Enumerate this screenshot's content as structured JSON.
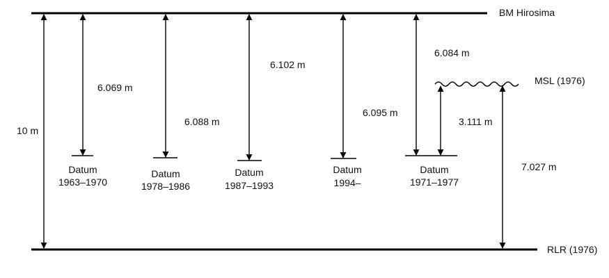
{
  "references": {
    "bm": "BM Hirosima",
    "msl": "MSL (1976)",
    "rlr": "RLR (1976)"
  },
  "measurements": {
    "total": "10 m",
    "datum_1963": "6.069 m",
    "datum_1978": "6.088 m",
    "datum_1987": "6.102 m",
    "datum_1994": "6.095 m",
    "datum_1971": "6.084 m",
    "msl_to_datum_1971": "3.111 m",
    "msl_to_rlr": "7.027 m"
  },
  "datums": {
    "d1": {
      "label": "Datum",
      "period": "1963–1970"
    },
    "d2": {
      "label": "Datum",
      "period": "1978–1986"
    },
    "d3": {
      "label": "Datum",
      "period": "1987–1993"
    },
    "d4": {
      "label": "Datum",
      "period": "1994–"
    },
    "d5": {
      "label": "Datum",
      "period": "1971–1977"
    }
  }
}
